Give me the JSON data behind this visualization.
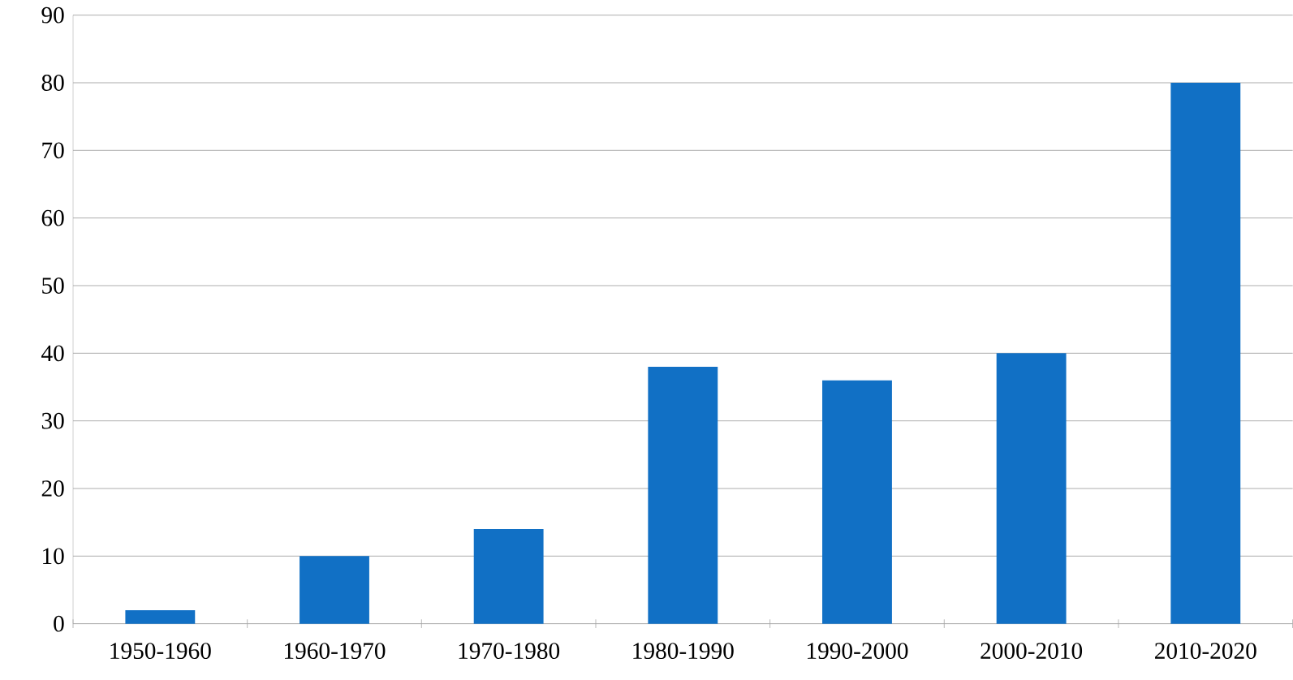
{
  "chart_data": {
    "type": "bar",
    "categories": [
      "1950-1960",
      "1960-1970",
      "1970-1980",
      "1980-1990",
      "1990-2000",
      "2000-2010",
      "2010-2020"
    ],
    "values": [
      2,
      10,
      14,
      38,
      36,
      40,
      80
    ],
    "color": "#1170c5",
    "ylim": [
      0,
      90
    ],
    "yticks": [
      0,
      10,
      20,
      30,
      40,
      50,
      60,
      70,
      80,
      90
    ],
    "grid": "y"
  }
}
